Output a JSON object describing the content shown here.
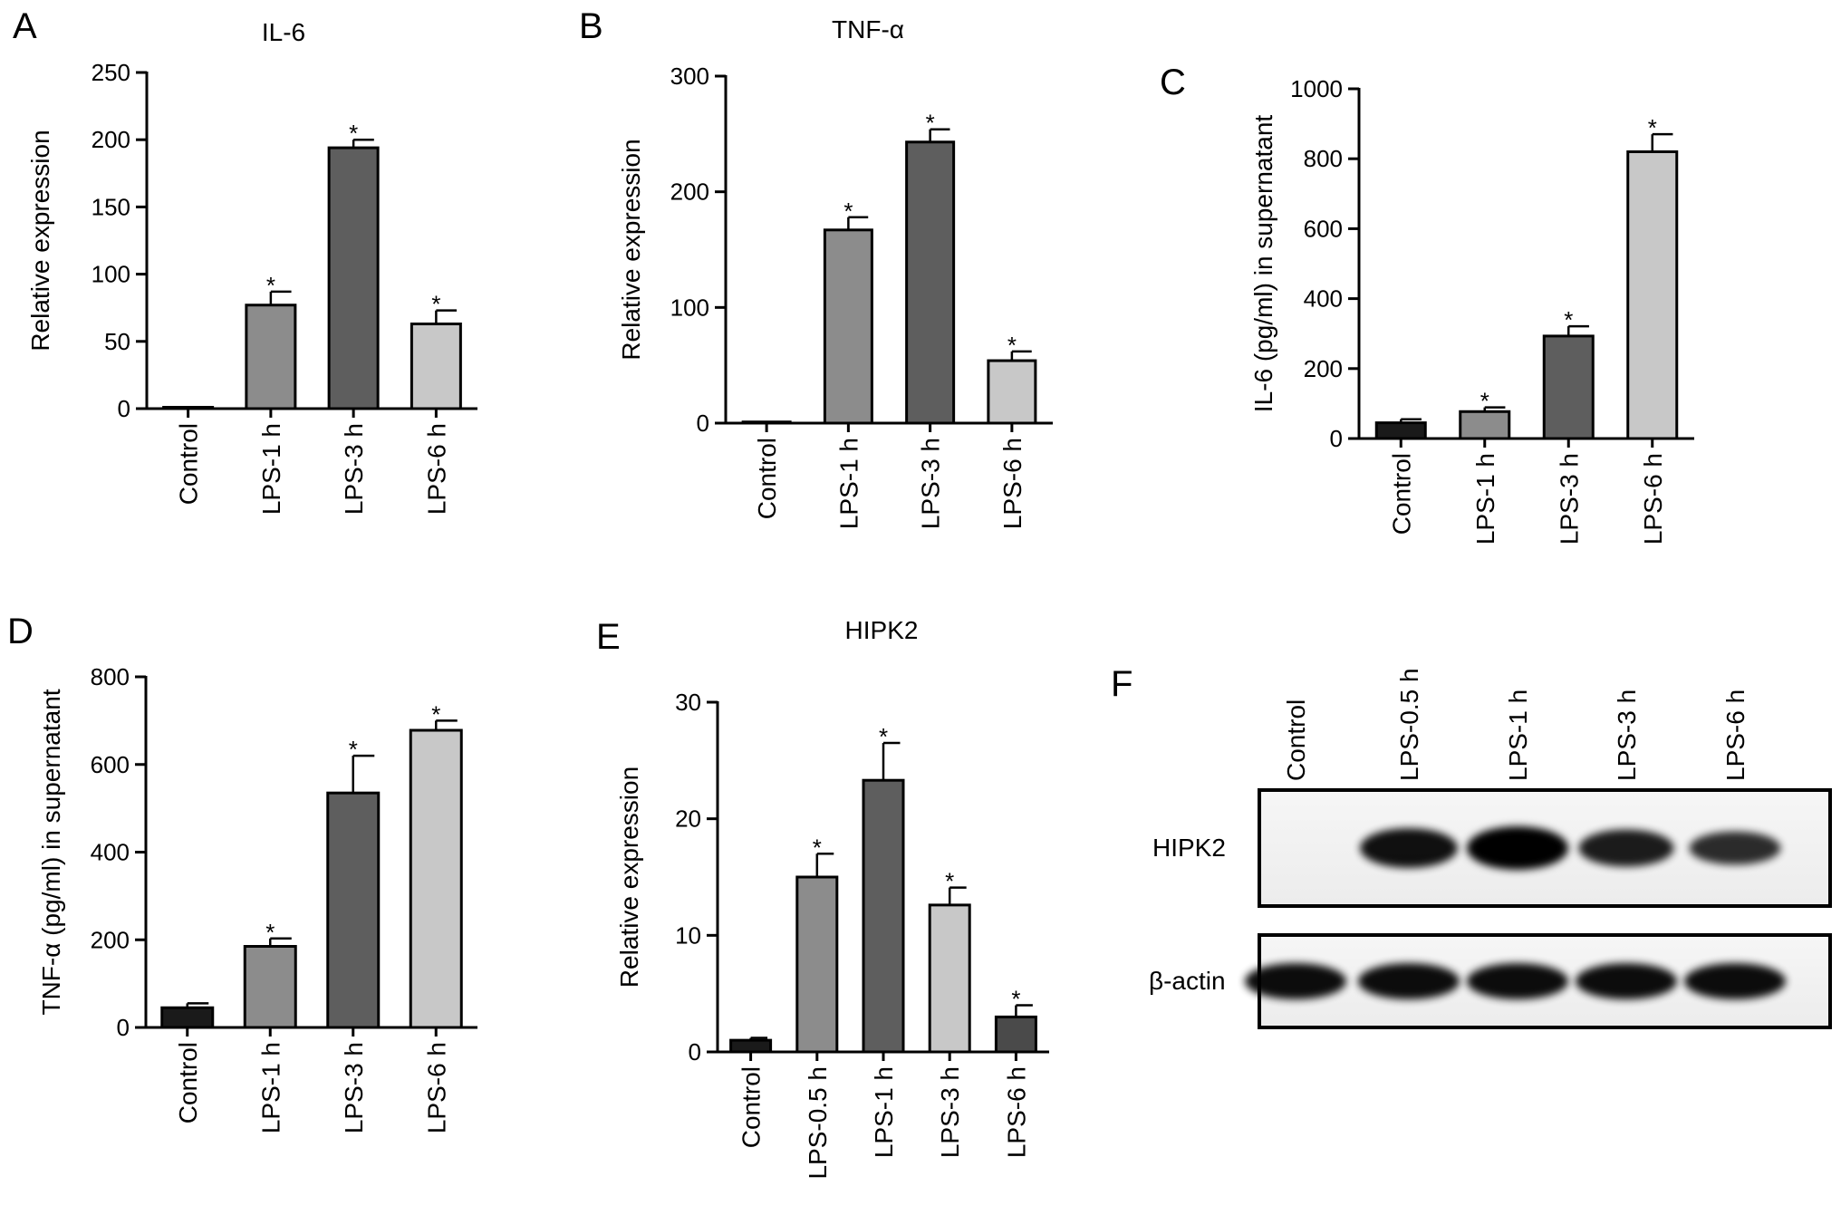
{
  "panel_letters": [
    "A",
    "B",
    "C",
    "D",
    "E",
    "F"
  ],
  "significance_marker": "*",
  "chart_data": [
    {
      "id": "A",
      "type": "bar",
      "title": "IL-6",
      "ylabel": "Relative expression",
      "ylim": [
        0,
        250
      ],
      "yticks": [
        0,
        50,
        100,
        150,
        200,
        250
      ],
      "categories": [
        "Control",
        "LPS-1 h",
        "LPS-3 h",
        "LPS-6 h"
      ],
      "values": [
        1,
        77,
        194,
        63
      ],
      "errors": [
        0,
        10,
        6,
        10
      ],
      "significant": [
        false,
        true,
        true,
        true
      ],
      "colors": [
        "#1a1a1a",
        "#8c8c8c",
        "#5e5e5e",
        "#c8c8c8"
      ]
    },
    {
      "id": "B",
      "type": "bar",
      "title": "TNF-α",
      "ylabel": "Relative expression",
      "ylim": [
        0,
        300
      ],
      "yticks": [
        0,
        100,
        200,
        300
      ],
      "categories": [
        "Control",
        "LPS-1 h",
        "LPS-3 h",
        "LPS-6 h"
      ],
      "values": [
        1,
        167,
        243,
        54
      ],
      "errors": [
        0,
        11,
        11,
        8
      ],
      "significant": [
        false,
        true,
        true,
        true
      ],
      "colors": [
        "#1a1a1a",
        "#8c8c8c",
        "#5e5e5e",
        "#c8c8c8"
      ]
    },
    {
      "id": "C",
      "type": "bar",
      "title": "",
      "ylabel": "IL-6 (pg/ml) in supernatant",
      "ylim": [
        0,
        1000
      ],
      "yticks": [
        0,
        200,
        400,
        600,
        800,
        1000
      ],
      "categories": [
        "Control",
        "LPS-1 h",
        "LPS-3 h",
        "LPS-6 h"
      ],
      "values": [
        45,
        77,
        293,
        820
      ],
      "errors": [
        10,
        12,
        28,
        50
      ],
      "significant": [
        false,
        true,
        true,
        true
      ],
      "colors": [
        "#1a1a1a",
        "#8c8c8c",
        "#5e5e5e",
        "#c8c8c8"
      ]
    },
    {
      "id": "D",
      "type": "bar",
      "title": "",
      "ylabel": "TNF-α (pg/ml) in supernatant",
      "ylim": [
        0,
        800
      ],
      "yticks": [
        0,
        200,
        400,
        600,
        800
      ],
      "categories": [
        "Control",
        "LPS-1 h",
        "LPS-3 h",
        "LPS-6 h"
      ],
      "values": [
        45,
        185,
        535,
        678
      ],
      "errors": [
        10,
        18,
        85,
        22
      ],
      "significant": [
        false,
        true,
        true,
        true
      ],
      "colors": [
        "#1a1a1a",
        "#8c8c8c",
        "#5e5e5e",
        "#c8c8c8"
      ]
    },
    {
      "id": "E",
      "type": "bar",
      "title": "HIPK2",
      "ylabel": "Relative expression",
      "ylim": [
        0,
        30
      ],
      "yticks": [
        0,
        10,
        20,
        30
      ],
      "categories": [
        "Control",
        "LPS-0.5 h",
        "LPS-1 h",
        "LPS-3 h",
        "LPS-6 h"
      ],
      "values": [
        1,
        15,
        23.3,
        12.6,
        3
      ],
      "errors": [
        0.2,
        2,
        3.2,
        1.5,
        1
      ],
      "significant": [
        false,
        true,
        true,
        true,
        true
      ],
      "colors": [
        "#1a1a1a",
        "#8c8c8c",
        "#5e5e5e",
        "#c8c8c8",
        "#4a4a4a"
      ]
    }
  ],
  "blot": {
    "lanes": [
      "Control",
      "LPS-0.5 h",
      "LPS-1 h",
      "LPS-3 h",
      "LPS-6 h"
    ],
    "rows": [
      {
        "label": "HIPK2",
        "intensities": [
          0,
          0.85,
          1.0,
          0.75,
          0.6
        ]
      },
      {
        "label": "β-actin",
        "intensities": [
          1,
          1,
          1,
          1,
          1
        ]
      }
    ]
  }
}
